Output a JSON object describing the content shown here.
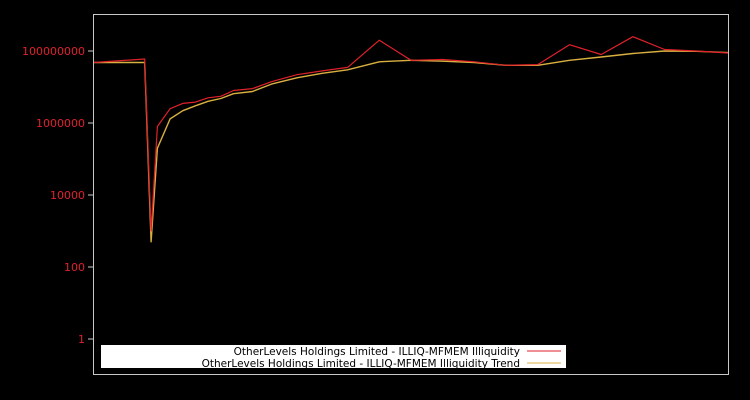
{
  "chart_data": {
    "type": "line",
    "title": "",
    "xlabel": "",
    "ylabel": "",
    "yscale": "log",
    "ylim": [
      0.3,
      3000000000
    ],
    "y_ticks": [
      "1",
      "100",
      "10000",
      "1000000",
      "100000000"
    ],
    "x_ticks": [],
    "grid": false,
    "legend_position": "lower center",
    "background": "#000000",
    "axes_color": "#c8c8c8",
    "tick_label_color": "#e0212a",
    "x": [
      0,
      8,
      9,
      10,
      12,
      14,
      16,
      18,
      20,
      22,
      25,
      28,
      32,
      36,
      40,
      45,
      50,
      55,
      60,
      65,
      70,
      75,
      80,
      85,
      90,
      95,
      100
    ],
    "series": [
      {
        "name": "OtherLevels Holdings Limited - ILLIQ-MFMEM Illiquidity",
        "color": "#e0212a",
        "values": [
          48000000,
          60000000,
          1000,
          800000,
          2500000,
          3500000,
          3800000,
          5000000,
          5500000,
          8000000,
          9000000,
          14000000,
          22000000,
          28000000,
          35000000,
          200000000,
          55000000,
          58000000,
          50000000,
          40000000,
          42000000,
          150000000,
          80000000,
          250000000,
          110000000,
          100000000,
          88000000
        ]
      },
      {
        "name": "OtherLevels Holdings Limited - ILLIQ-MFMEM Illiquidity Trend",
        "color": "#d9b040",
        "values": [
          48000000,
          48000000,
          500,
          200000,
          1300000,
          2200000,
          3000000,
          4000000,
          4800000,
          6500000,
          7500000,
          12000000,
          18000000,
          24000000,
          30000000,
          50000000,
          55000000,
          52000000,
          48000000,
          40000000,
          40000000,
          55000000,
          68000000,
          85000000,
          100000000,
          98000000,
          90000000
        ]
      }
    ]
  },
  "legend": {
    "items": [
      {
        "label": "OtherLevels Holdings Limited - ILLIQ-MFMEM Illiquidity",
        "color": "#e0212a"
      },
      {
        "label": "OtherLevels Holdings Limited - ILLIQ-MFMEM Illiquidity Trend",
        "color": "#d9b040"
      }
    ]
  }
}
